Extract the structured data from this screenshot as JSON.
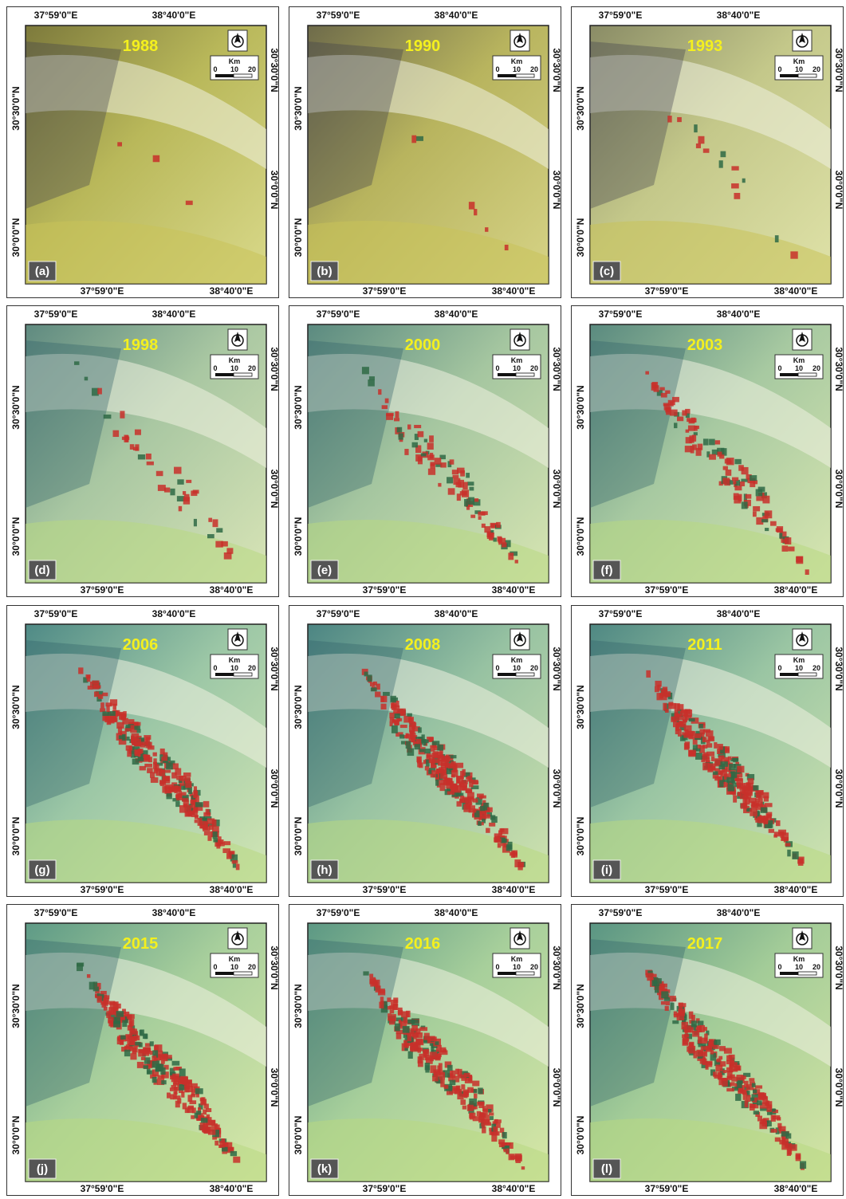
{
  "panels": [
    {
      "year": "1988",
      "label": "(a)"
    },
    {
      "year": "1990",
      "label": "(b)"
    },
    {
      "year": "1993",
      "label": "(c)"
    },
    {
      "year": "1998",
      "label": "(d)"
    },
    {
      "year": "2000",
      "label": "(e)"
    },
    {
      "year": "2003",
      "label": "(f)"
    },
    {
      "year": "2006",
      "label": "(g)"
    },
    {
      "year": "2008",
      "label": "(h)"
    },
    {
      "year": "2011",
      "label": "(i)"
    },
    {
      "year": "2015",
      "label": "(j)"
    },
    {
      "year": "2016",
      "label": "(k)"
    },
    {
      "year": "2017",
      "label": "(l)"
    }
  ],
  "longitude_labels": [
    "37°59'0\"E",
    "38°40'0\"E"
  ],
  "latitude_labels": [
    "30°30'0\"N",
    "30°0'0\"N"
  ],
  "scale_bar": {
    "unit": "Km",
    "ticks": [
      "0",
      "10",
      "20"
    ]
  }
}
